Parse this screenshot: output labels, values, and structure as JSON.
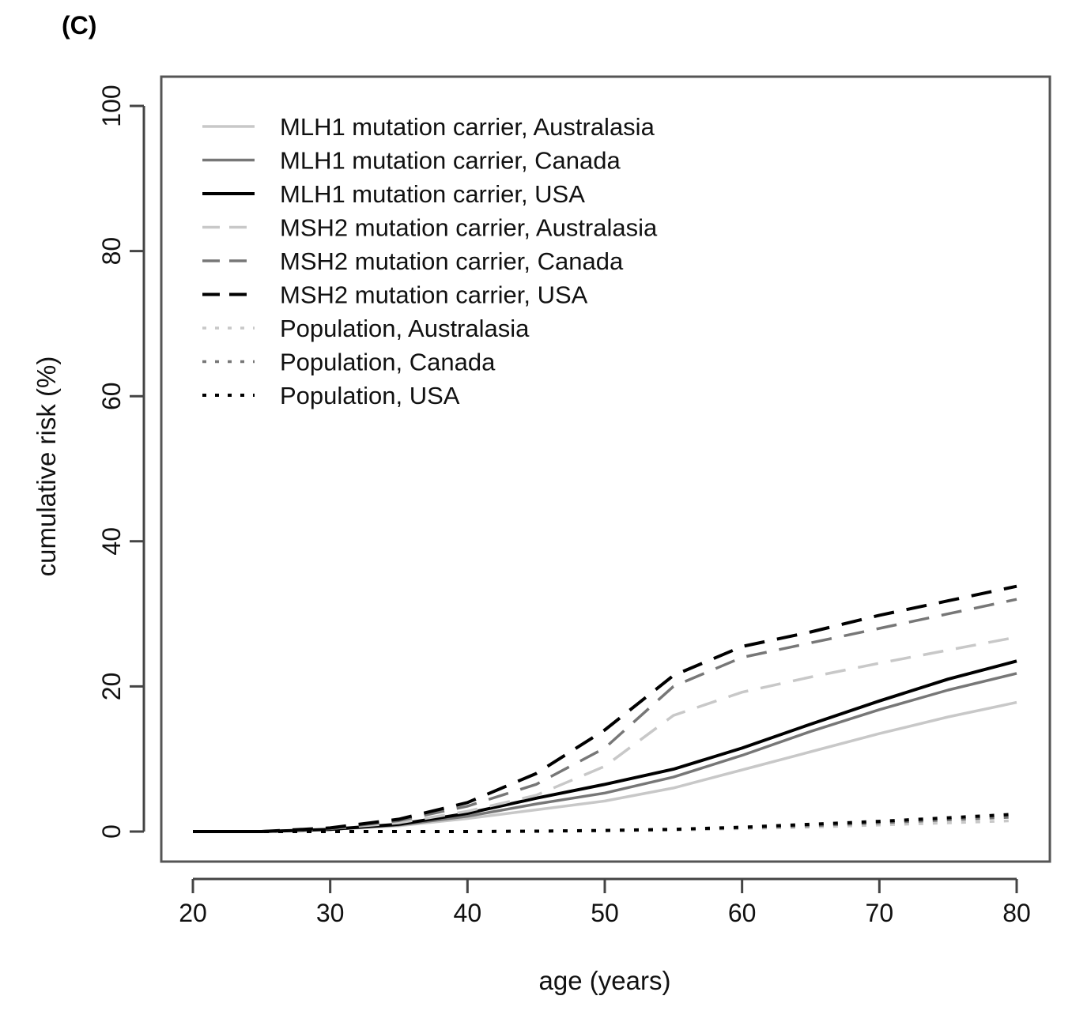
{
  "panel_label": "(C)",
  "chart_data": {
    "type": "line",
    "title": "",
    "xlabel": "age (years)",
    "ylabel": "cumulative risk (%)",
    "xlim": [
      20,
      80
    ],
    "ylim": [
      0,
      100
    ],
    "xticks": [
      20,
      30,
      40,
      50,
      60,
      70,
      80
    ],
    "yticks": [
      0,
      20,
      40,
      60,
      80,
      100
    ],
    "grid": false,
    "legend_position": "top-left",
    "x": [
      20,
      25,
      30,
      35,
      40,
      45,
      50,
      55,
      60,
      65,
      70,
      75,
      80
    ],
    "series": [
      {
        "name": "MLH1 mutation carrier, Australasia",
        "color": "#c8c8c8",
        "dash": "solid",
        "values": [
          0,
          0,
          0.3,
          0.8,
          1.8,
          3.0,
          4.2,
          6.0,
          8.5,
          11.0,
          13.5,
          15.8,
          17.8
        ]
      },
      {
        "name": "MLH1 mutation carrier, Canada",
        "color": "#777777",
        "dash": "solid",
        "values": [
          0,
          0,
          0.3,
          0.9,
          2.1,
          3.8,
          5.3,
          7.5,
          10.5,
          13.8,
          16.8,
          19.5,
          21.8
        ]
      },
      {
        "name": "MLH1 mutation carrier, USA",
        "color": "#000000",
        "dash": "solid",
        "values": [
          0,
          0,
          0.3,
          1.0,
          2.5,
          4.6,
          6.5,
          8.6,
          11.5,
          14.8,
          18.0,
          21.0,
          23.5
        ]
      },
      {
        "name": "MSH2 mutation carrier, Australasia",
        "color": "#c8c8c8",
        "dash": "dashed",
        "values": [
          0,
          0,
          0.4,
          1.2,
          2.8,
          5.0,
          9.0,
          16.0,
          19.2,
          21.3,
          23.2,
          25.0,
          26.8
        ]
      },
      {
        "name": "MSH2 mutation carrier, Canada",
        "color": "#777777",
        "dash": "dashed",
        "values": [
          0,
          0,
          0.4,
          1.5,
          3.5,
          6.5,
          11.5,
          20.0,
          24.0,
          26.0,
          28.0,
          30.0,
          32.0
        ]
      },
      {
        "name": "MSH2 mutation carrier, USA",
        "color": "#000000",
        "dash": "dashed",
        "values": [
          0,
          0,
          0.5,
          1.7,
          4.0,
          8.0,
          14.0,
          21.5,
          25.5,
          27.5,
          29.8,
          31.8,
          33.8
        ]
      },
      {
        "name": "Population, Australasia",
        "color": "#c8c8c8",
        "dash": "dotted",
        "values": [
          0,
          0,
          0,
          0,
          0,
          0.05,
          0.1,
          0.2,
          0.4,
          0.6,
          0.9,
          1.2,
          1.5
        ]
      },
      {
        "name": "Population, Canada",
        "color": "#777777",
        "dash": "dotted",
        "values": [
          0,
          0,
          0,
          0,
          0,
          0.05,
          0.15,
          0.3,
          0.5,
          0.8,
          1.2,
          1.6,
          2.0
        ]
      },
      {
        "name": "Population, USA",
        "color": "#000000",
        "dash": "dotted",
        "values": [
          0,
          0,
          0,
          0,
          0,
          0.05,
          0.15,
          0.3,
          0.6,
          1.0,
          1.4,
          1.9,
          2.4
        ]
      }
    ]
  }
}
